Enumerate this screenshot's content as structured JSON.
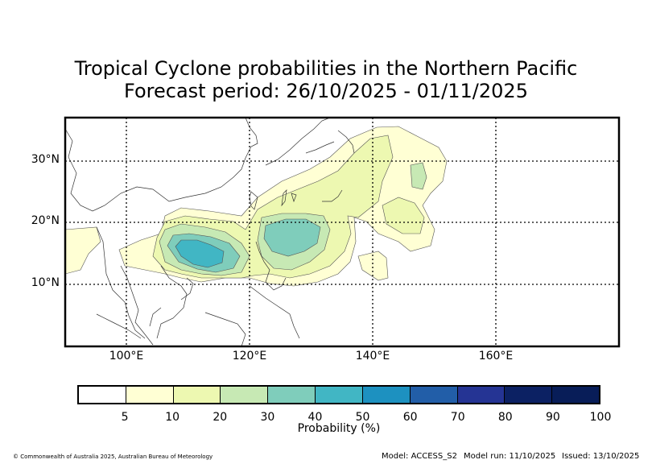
{
  "title": {
    "line1": "Tropical Cyclone probabilities in the Northern Pacific",
    "line2": "Forecast period: 26/10/2025 - 01/11/2025"
  },
  "map": {
    "lat_labels": [
      "30°N",
      "20°N",
      "10°N"
    ],
    "lon_labels": [
      "100°E",
      "120°E",
      "140°E",
      "160°E"
    ],
    "extent": {
      "lon_min": 90,
      "lon_max": 180,
      "lat_min": 0,
      "lat_max": 37
    }
  },
  "colorbar": {
    "label": "Probability (%)",
    "ticks": [
      "5",
      "10",
      "20",
      "30",
      "40",
      "50",
      "60",
      "70",
      "80",
      "90",
      "100"
    ],
    "colors": [
      "#ffffff",
      "#ffffd4",
      "#edf8b1",
      "#c7e9b4",
      "#7fcdbb",
      "#41b6c4",
      "#1d91c0",
      "#225ea8",
      "#253494",
      "#0c2163",
      "#081d58"
    ]
  },
  "footer": {
    "copyright": "© Commonwealth of Australia 2025, Australian Bureau of Meteorology",
    "model": "Model: ACCESS_S2",
    "model_run": "Model run: 11/10/2025",
    "issued": "Issued: 13/10/2025"
  }
}
